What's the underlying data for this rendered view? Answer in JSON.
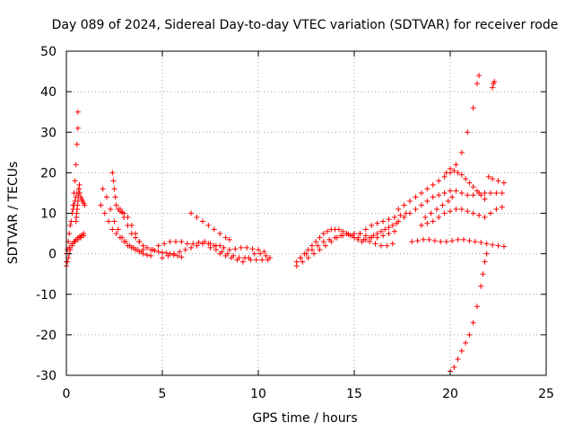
{
  "chart_data": {
    "type": "scatter",
    "title": "Day 089 of 2024, Sidereal Day-to-day VTEC variation (SDTVAR) for receiver rode",
    "xlabel": "GPS time / hours",
    "ylabel": "SDTVAR / TECUs",
    "xlim": [
      0,
      25
    ],
    "ylim": [
      -30,
      50
    ],
    "xticks": [
      0,
      5,
      10,
      15,
      20,
      25
    ],
    "yticks": [
      -30,
      -20,
      -10,
      0,
      10,
      20,
      30,
      40,
      50
    ],
    "grid": true,
    "marker": "plus",
    "color": "#ff0000",
    "series": [
      {
        "name": "rode",
        "x": [
          0.0,
          0.05,
          0.1,
          0.15,
          0.2,
          0.25,
          0.3,
          0.35,
          0.4,
          0.45,
          0.5,
          0.55,
          0.0,
          0.05,
          0.1,
          0.15,
          0.2,
          0.3,
          0.4,
          0.5,
          0.6,
          0.7,
          0.8,
          0.9,
          0.35,
          0.4,
          0.45,
          0.5,
          0.55,
          0.6,
          0.6,
          0.65,
          0.7,
          0.75,
          0.8,
          0.85,
          0.9,
          0.95,
          0.0,
          0.15,
          0.3,
          0.45,
          0.6,
          0.75,
          0.9,
          0.5,
          0.52,
          0.54,
          0.56,
          0.58,
          0.6,
          0.62,
          0.64,
          0.66,
          0.68,
          1.9,
          2.1,
          2.3,
          2.5,
          2.7,
          2.9,
          3.1,
          3.3,
          3.5,
          3.7,
          3.9,
          1.8,
          2.0,
          2.2,
          2.4,
          2.6,
          2.8,
          3.0,
          3.2,
          3.4,
          3.6,
          3.8,
          4.0,
          4.2,
          4.4,
          2.4,
          2.45,
          2.5,
          2.55,
          2.6,
          2.7,
          2.8,
          2.9,
          3.0,
          3.2,
          3.4,
          3.6,
          3.8,
          4.0,
          2.8,
          3.0,
          3.2,
          3.4,
          3.6,
          3.8,
          4.0,
          4.2,
          4.4,
          4.6,
          4.8,
          5.0,
          5.2,
          5.4,
          5.6,
          5.8,
          6.0,
          4.5,
          4.8,
          5.1,
          5.4,
          5.7,
          6.0,
          6.3,
          6.6,
          6.9,
          7.2,
          7.5,
          7.8,
          8.0,
          8.2,
          6.5,
          6.8,
          7.1,
          7.4,
          7.7,
          8.0,
          8.3,
          8.5,
          5.0,
          5.3,
          5.6,
          5.9,
          6.2,
          6.5,
          6.8,
          7.1,
          7.4,
          7.7,
          7.5,
          7.8,
          8.1,
          8.4,
          8.7,
          9.0,
          9.3,
          9.6,
          9.9,
          10.2,
          10.5,
          8.0,
          8.3,
          8.6,
          8.9,
          9.2,
          9.5,
          9.8,
          10.1,
          10.4,
          10.6,
          8.5,
          8.8,
          9.1,
          9.4,
          9.7,
          10.0,
          10.3,
          12.0,
          12.2,
          12.4,
          12.6,
          12.8,
          13.0,
          13.2,
          13.4,
          13.6,
          13.8,
          14.0,
          14.2,
          14.4,
          14.6,
          14.8,
          15.0,
          15.2,
          15.4,
          15.6,
          15.8,
          16.0,
          16.2,
          16.4,
          16.6,
          16.8,
          17.0,
          17.2,
          12.0,
          12.3,
          12.6,
          12.9,
          13.2,
          13.5,
          13.8,
          14.1,
          14.4,
          14.7,
          15.0,
          15.3,
          15.6,
          15.9,
          16.2,
          16.5,
          16.8,
          17.1,
          12.2,
          12.5,
          12.8,
          13.1,
          13.4,
          13.7,
          14.0,
          14.3,
          14.6,
          14.9,
          15.2,
          15.5,
          15.8,
          16.1,
          16.4,
          16.7,
          17.0,
          15.0,
          15.3,
          15.6,
          15.9,
          16.2,
          16.5,
          16.8,
          17.1,
          17.4,
          17.7,
          17.3,
          17.6,
          17.9,
          18.2,
          18.5,
          18.8,
          19.1,
          19.4,
          19.7,
          20.0,
          20.3,
          20.6,
          20.9,
          21.2,
          21.4,
          21.5,
          17.3,
          17.6,
          17.9,
          18.2,
          18.5,
          18.8,
          19.1,
          19.4,
          19.7,
          20.0,
          20.3,
          20.6,
          20.9,
          21.2,
          21.5,
          21.8,
          22.1,
          22.4,
          22.7,
          18.5,
          18.8,
          19.1,
          19.4,
          19.7,
          20.0,
          20.3,
          20.6,
          20.9,
          21.2,
          21.5,
          21.8,
          22.1,
          22.4,
          22.7,
          18.0,
          18.3,
          18.6,
          18.9,
          19.2,
          19.5,
          19.8,
          20.1,
          20.4,
          20.7,
          21.0,
          21.3,
          21.6,
          21.9,
          22.2,
          22.5,
          22.8,
          18.7,
          19.0,
          19.3,
          19.6,
          19.9,
          20.1,
          19.8,
          20.0,
          20.2,
          20.4,
          20.6,
          20.8,
          21.0,
          21.2,
          21.4,
          21.6,
          21.8,
          22.0,
          22.2,
          22.5,
          22.8,
          22.2,
          22.25,
          22.3,
          20.0,
          20.2,
          20.4,
          20.6,
          20.8,
          21.0,
          21.2,
          21.4,
          21.6,
          21.7,
          21.8,
          21.9
        ],
        "y": [
          -2,
          1,
          3,
          5,
          7,
          8,
          10,
          11,
          12,
          13,
          14,
          15,
          -3,
          -2,
          -1,
          0,
          1,
          2,
          3,
          3.5,
          4,
          4.3,
          4.6,
          5,
          12,
          15,
          18,
          22,
          27,
          31,
          35,
          16,
          15,
          14,
          13.5,
          13,
          12.5,
          12,
          0,
          1.5,
          2.5,
          3,
          3.5,
          4,
          4.5,
          8,
          9,
          10,
          11,
          12,
          13,
          14,
          15,
          16,
          17,
          16,
          14,
          11,
          8,
          6,
          4,
          3,
          2,
          1.5,
          1,
          0.5,
          12,
          10,
          8,
          6,
          5,
          4,
          3,
          2,
          1.5,
          1,
          0.5,
          0,
          -0.3,
          -0.5,
          20,
          18,
          16,
          14,
          12,
          11,
          10.5,
          10.2,
          10,
          9,
          7,
          5,
          3,
          1,
          11,
          9,
          7,
          5,
          4,
          3,
          2,
          1.5,
          1,
          0.8,
          0.5,
          0.3,
          0.2,
          0,
          -0.3,
          -0.5,
          -0.8,
          1,
          2,
          2.5,
          3,
          3,
          3,
          2.5,
          2.5,
          2.8,
          3,
          2.5,
          2,
          2,
          1.5,
          10,
          9,
          8,
          7,
          6,
          5,
          4,
          3.5,
          -1,
          -0.5,
          0,
          0.5,
          1,
          1.5,
          2,
          2.5,
          2.5,
          2,
          1.5,
          1,
          0.5,
          0,
          -0.5,
          -1,
          -1,
          -1.5,
          -1.5,
          -1.5,
          -1.5,
          0,
          -0.5,
          -1,
          -1.5,
          -2,
          -1,
          0,
          0,
          -0.5,
          -1,
          1,
          1.2,
          1.5,
          1.5,
          1.2,
          1,
          0.5,
          -2,
          -1,
          0,
          1,
          2,
          3,
          4,
          5,
          5.5,
          6,
          6,
          6,
          5.5,
          5,
          4.5,
          4,
          3.5,
          3,
          3.5,
          4,
          4.5,
          5,
          5.5,
          6,
          6.5,
          7,
          7.5,
          -3,
          -2,
          -1,
          0,
          1,
          2,
          3,
          4,
          4.5,
          4.8,
          5,
          5,
          4.5,
          4,
          4,
          4.5,
          5,
          5.5,
          -1,
          0,
          1,
          2,
          3,
          3.5,
          4,
          4.5,
          5,
          4.5,
          4,
          3.5,
          3,
          2.5,
          2,
          2,
          2.5,
          4,
          5,
          6,
          7,
          7.5,
          8,
          8.5,
          9,
          9.5,
          10,
          11,
          12,
          13,
          14,
          15,
          16,
          17,
          18,
          19,
          20,
          22,
          25,
          30,
          36,
          42,
          44,
          8,
          9,
          10,
          11,
          12,
          13,
          14,
          14.5,
          15,
          15.5,
          15.5,
          15,
          14.5,
          14.5,
          15,
          15,
          15,
          15,
          15,
          7,
          7.5,
          8,
          9,
          10,
          10.5,
          11,
          11,
          10.5,
          10,
          9.5,
          9,
          10,
          11,
          11.5,
          3,
          3.2,
          3.5,
          3.5,
          3.2,
          3.0,
          3.0,
          3.2,
          3.5,
          3.5,
          3.2,
          3.0,
          2.8,
          2.5,
          2.2,
          2.0,
          1.8,
          9,
          10,
          11,
          12,
          13,
          14,
          20,
          21,
          20.5,
          20,
          19.5,
          18.5,
          17.5,
          16.5,
          15.5,
          14.5,
          13.5,
          19,
          18.5,
          18,
          17.5,
          41,
          42,
          42.5,
          -29,
          -28,
          -26,
          -24,
          -22,
          -20,
          -17,
          -13,
          -8,
          -5,
          -2,
          0
        ]
      }
    ]
  }
}
